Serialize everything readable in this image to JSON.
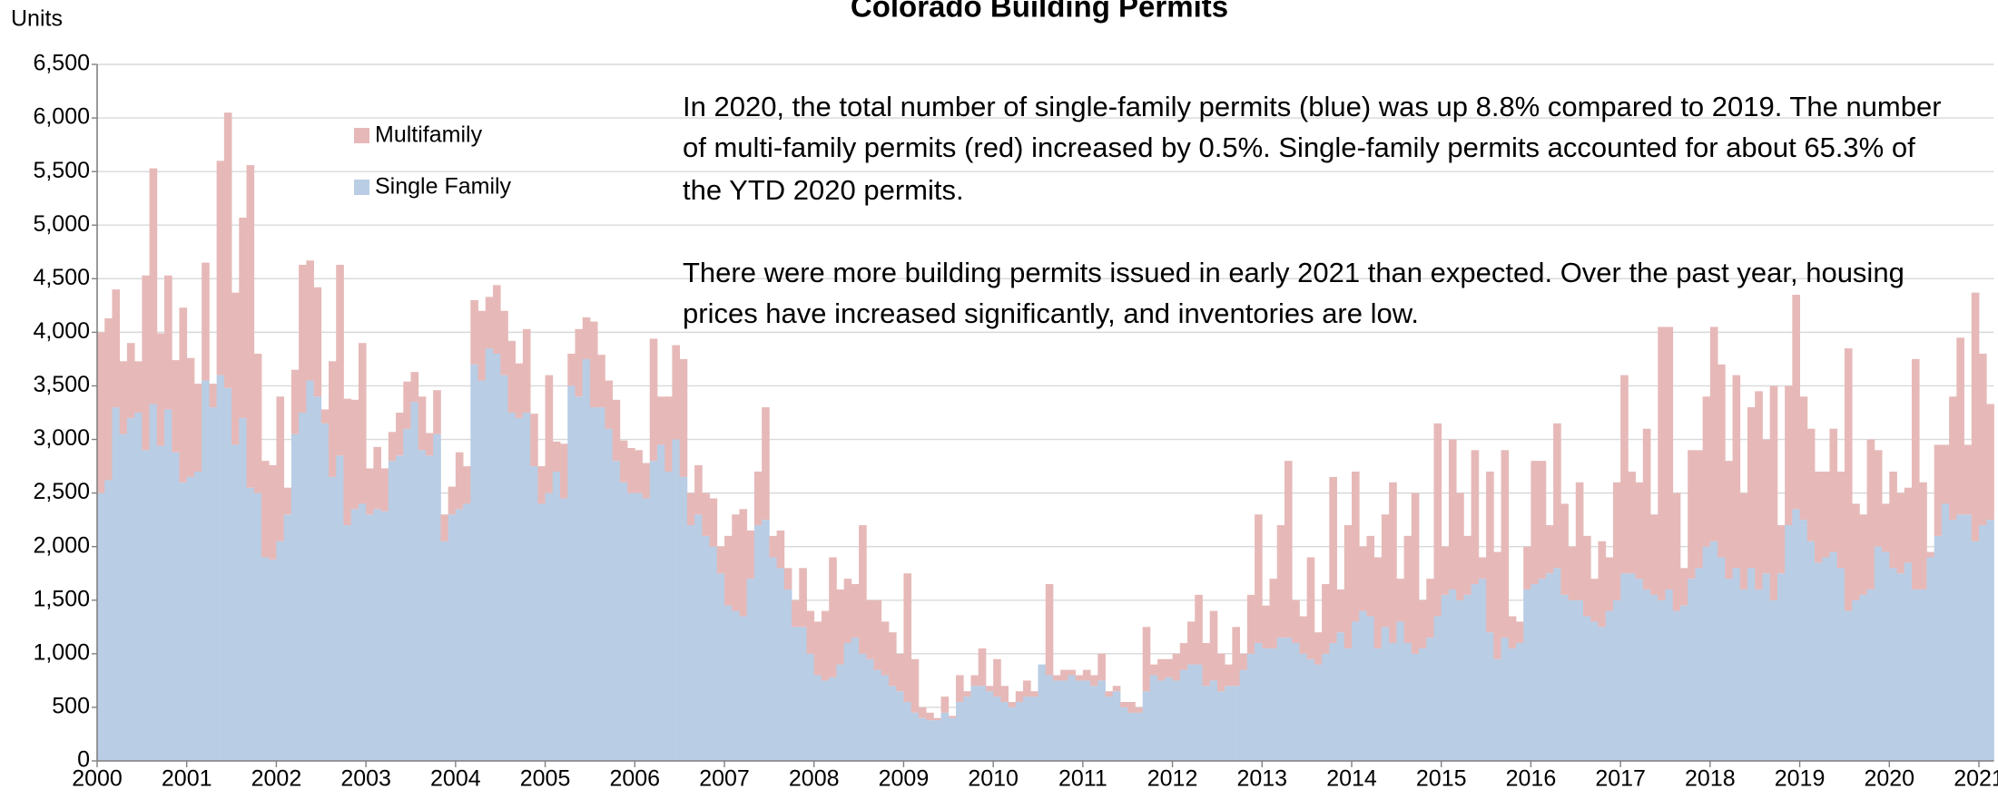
{
  "chart_data": {
    "type": "stacked_bar",
    "title": "Colorado Building Permits",
    "y_label": "Units",
    "annotations": [
      "In 2020, the total number of single-family permits (blue) was up 8.8% compared to 2019. The number",
      "of multi-family permits (red) increased by 0.5%. Single-family permits accounted for about 65.3% of",
      "the YTD 2020 permits.",
      "There were more building permits issued in early 2021 than expected. Over the past year, housing",
      "prices have increased significantly, and inventories are low."
    ],
    "categories": [
      "2000",
      null,
      null,
      null,
      null,
      null,
      null,
      null,
      null,
      null,
      null,
      null,
      "2001",
      null,
      null,
      null,
      null,
      null,
      null,
      null,
      null,
      null,
      null,
      null,
      "2002",
      null,
      null,
      null,
      null,
      null,
      null,
      null,
      null,
      null,
      null,
      null,
      "2003",
      null,
      null,
      null,
      null,
      null,
      null,
      null,
      null,
      null,
      null,
      null,
      "2004",
      null,
      null,
      null,
      null,
      null,
      null,
      null,
      null,
      null,
      null,
      null,
      "2005",
      null,
      null,
      null,
      null,
      null,
      null,
      null,
      null,
      null,
      null,
      null,
      "2006",
      null,
      null,
      null,
      null,
      null,
      null,
      null,
      null,
      null,
      null,
      null,
      "2007",
      null,
      null,
      null,
      null,
      null,
      null,
      null,
      null,
      null,
      null,
      null,
      "2008",
      null,
      null,
      null,
      null,
      null,
      null,
      null,
      null,
      null,
      null,
      null,
      "2009",
      null,
      null,
      null,
      null,
      null,
      null,
      null,
      null,
      null,
      null,
      null,
      "2010",
      null,
      null,
      null,
      null,
      null,
      null,
      null,
      null,
      null,
      null,
      null,
      "2011",
      null,
      null,
      null,
      null,
      null,
      null,
      null,
      null,
      null,
      null,
      null,
      "2012",
      null,
      null,
      null,
      null,
      null,
      null,
      null,
      null,
      null,
      null,
      null,
      "2013",
      null,
      null,
      null,
      null,
      null,
      null,
      null,
      null,
      null,
      null,
      null,
      "2014",
      null,
      null,
      null,
      null,
      null,
      null,
      null,
      null,
      null,
      null,
      null,
      "2015",
      null,
      null,
      null,
      null,
      null,
      null,
      null,
      null,
      null,
      null,
      null,
      "2016",
      null,
      null,
      null,
      null,
      null,
      null,
      null,
      null,
      null,
      null,
      null,
      "2017",
      null,
      null,
      null,
      null,
      null,
      null,
      null,
      null,
      null,
      null,
      null,
      "2018",
      null,
      null,
      null,
      null,
      null,
      null,
      null,
      null,
      null,
      null,
      null,
      "2019",
      null,
      null,
      null,
      null,
      null,
      null,
      null,
      null,
      null,
      null,
      null,
      "2020",
      null,
      null,
      null,
      null,
      null,
      null,
      null,
      null,
      null,
      null,
      null,
      "2021",
      null
    ],
    "series": [
      {
        "name": "Multifamily",
        "color": "#e6b9b8",
        "values": [
          1500,
          1510,
          1100,
          680,
          700,
          480,
          1630,
          2200,
          1050,
          1250,
          860,
          1630,
          1110,
          820,
          1100,
          220,
          2000,
          2570,
          1420,
          1870,
          3010,
          1300,
          900,
          880,
          1350,
          250,
          600,
          1380,
          1120,
          1020,
          130,
          1080,
          1780,
          1180,
          1020,
          1500,
          430,
          580,
          400,
          270,
          400,
          440,
          280,
          500,
          210,
          410,
          250,
          260,
          530,
          350,
          600,
          650,
          480,
          640,
          600,
          670,
          510,
          780,
          490,
          350,
          1100,
          280,
          510,
          300,
          630,
          390,
          800,
          490,
          450,
          570,
          390,
          420,
          400,
          330,
          1140,
          450,
          700,
          880,
          1100,
          300,
          460,
          400,
          450,
          250,
          650,
          900,
          1000,
          450,
          500,
          1050,
          200,
          350,
          200,
          250,
          550,
          400,
          500,
          650,
          1120,
          700,
          600,
          500,
          1200,
          550,
          650,
          500,
          500,
          350,
          1200,
          500,
          100,
          70,
          20,
          150,
          20,
          250,
          50,
          100,
          350,
          50,
          350,
          150,
          50,
          100,
          150,
          50,
          0,
          850,
          50,
          100,
          50,
          50,
          100,
          100,
          250,
          50,
          50,
          50,
          100,
          50,
          600,
          100,
          200,
          170,
          250,
          250,
          400,
          650,
          400,
          650,
          350,
          200,
          550,
          150,
          550,
          1200,
          400,
          650,
          1050,
          1650,
          400,
          350,
          950,
          300,
          650,
          1550,
          400,
          1150,
          1400,
          600,
          750,
          850,
          1050,
          1500,
          400,
          1000,
          1500,
          450,
          550,
          1800,
          450,
          1400,
          1000,
          550,
          1250,
          200,
          1500,
          1000,
          1750,
          300,
          200,
          400,
          1150,
          1100,
          450,
          1350,
          850,
          500,
          1100,
          750,
          400,
          800,
          500,
          1100,
          1850,
          950,
          900,
          1500,
          750,
          2550,
          2450,
          1100,
          350,
          1200,
          1100,
          1400,
          2000,
          1800,
          1100,
          1800,
          900,
          1500,
          1850,
          1250,
          2000,
          450,
          1300,
          2000,
          1150,
          1050,
          850,
          800,
          1150,
          900,
          2450,
          900,
          750,
          1400,
          900,
          450,
          900,
          750,
          700,
          2150,
          1000,
          50,
          850,
          550,
          1150,
          1650,
          650,
          2320,
          1600,
          1080
        ]
      },
      {
        "name": "Single Family",
        "color": "#b9cde5",
        "values": [
          2500,
          2620,
          3300,
          3050,
          3200,
          3250,
          2900,
          3330,
          2940,
          3280,
          2880,
          2600,
          2650,
          2700,
          3550,
          3300,
          3600,
          3480,
          2950,
          3200,
          2550,
          2500,
          1900,
          1880,
          2050,
          2300,
          3050,
          3250,
          3550,
          3400,
          3150,
          2650,
          2850,
          2200,
          2350,
          2400,
          2300,
          2350,
          2330,
          2800,
          2850,
          3100,
          3350,
          2900,
          2850,
          3050,
          2050,
          2300,
          2350,
          2400,
          3700,
          3550,
          3850,
          3800,
          3600,
          3250,
          3200,
          3250,
          2750,
          2400,
          2500,
          2700,
          2450,
          3500,
          3400,
          3750,
          3300,
          3300,
          3100,
          2800,
          2600,
          2500,
          2500,
          2450,
          2800,
          2950,
          2700,
          3000,
          2650,
          2200,
          2300,
          2100,
          2000,
          1750,
          1450,
          1400,
          1350,
          1700,
          2200,
          2250,
          1900,
          1800,
          1600,
          1250,
          1250,
          1000,
          800,
          750,
          780,
          900,
          1100,
          1150,
          1000,
          950,
          850,
          800,
          700,
          650,
          550,
          450,
          400,
          380,
          380,
          450,
          400,
          550,
          600,
          700,
          700,
          650,
          600,
          550,
          500,
          550,
          600,
          600,
          900,
          800,
          750,
          750,
          800,
          750,
          750,
          700,
          750,
          600,
          650,
          500,
          450,
          450,
          650,
          800,
          750,
          780,
          750,
          850,
          900,
          900,
          700,
          750,
          650,
          700,
          700,
          850,
          1000,
          1100,
          1050,
          1050,
          1150,
          1150,
          1100,
          1000,
          950,
          900,
          1000,
          1100,
          1200,
          1050,
          1300,
          1400,
          1350,
          1050,
          1250,
          1100,
          1300,
          1100,
          1000,
          1050,
          1150,
          1350,
          1550,
          1600,
          1500,
          1550,
          1650,
          1700,
          1200,
          950,
          1150,
          1050,
          1100,
          1600,
          1650,
          1700,
          1750,
          1800,
          1550,
          1500,
          1500,
          1350,
          1300,
          1250,
          1400,
          1500,
          1750,
          1750,
          1700,
          1600,
          1550,
          1500,
          1600,
          1400,
          1450,
          1700,
          1800,
          2000,
          2050,
          1900,
          1700,
          1800,
          1600,
          1800,
          1600,
          1750,
          1500,
          1750,
          2200,
          2350,
          2250,
          2050,
          1850,
          1900,
          1950,
          1800,
          1400,
          1500,
          1550,
          1600,
          2000,
          1950,
          1800,
          1750,
          1850,
          1600,
          1600,
          1900,
          2100,
          2400,
          2250,
          2300,
          2300,
          2050,
          2200,
          2250
        ]
      }
    ],
    "ylim": [
      0,
      6500
    ],
    "yticks": [
      0,
      500,
      {
        "value": 1000,
        "label": "1,000"
      },
      {
        "value": 1500,
        "label": "1,500"
      },
      {
        "value": 2000,
        "label": "2,000"
      },
      {
        "value": 2500,
        "label": "2,500"
      },
      {
        "value": 3000,
        "label": "3,000"
      },
      {
        "value": 3500,
        "label": "3,500"
      },
      {
        "value": 4000,
        "label": "4,000"
      },
      {
        "value": 4500,
        "label": "4,500"
      },
      {
        "value": 5000,
        "label": "5,000"
      },
      {
        "value": 5500,
        "label": "5,500"
      },
      {
        "value": 6000,
        "label": "6,000"
      },
      {
        "value": 6500,
        "label": "6,500"
      }
    ],
    "grid": true
  }
}
